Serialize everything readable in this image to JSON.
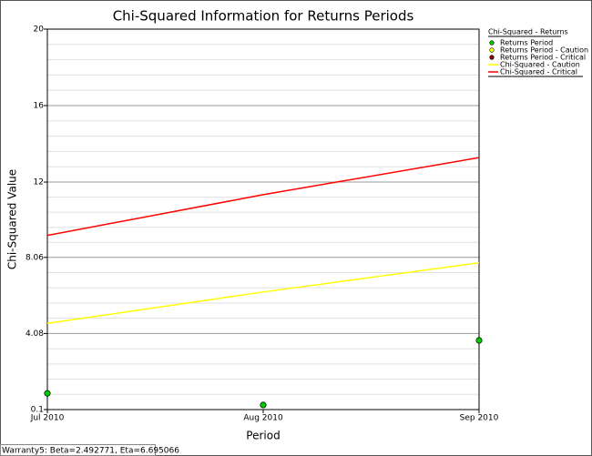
{
  "chart_data": {
    "type": "line",
    "title": "Chi-Squared Information for Returns Periods",
    "x_label": "Period",
    "y_label": "Chi-Squared Value",
    "legend_title": "Chi-Squared - Returns",
    "categories": [
      "Jul 2010",
      "Aug 2010",
      "Sep 2010"
    ],
    "series": [
      {
        "name": "Returns Period",
        "color": "#00cc00",
        "kind": "points",
        "values": [
          0.95,
          0.34,
          3.72
        ]
      },
      {
        "name": "Returns Period - Caution",
        "color": "#ffff00",
        "kind": "points",
        "values": [
          null,
          null,
          null
        ]
      },
      {
        "name": "Returns Period - Critical",
        "color": "#8b0000",
        "kind": "points",
        "values": [
          null,
          null,
          null
        ]
      },
      {
        "name": "Chi-Squared - Caution",
        "color": "#ffff00",
        "kind": "line",
        "values": [
          4.61,
          6.25,
          7.78
        ]
      },
      {
        "name": "Chi-Squared - Critical",
        "color": "#ff0000",
        "kind": "line",
        "values": [
          9.21,
          11.34,
          13.28
        ]
      }
    ],
    "ylim": [
      0.1,
      20
    ],
    "yticks": [
      0.1,
      4.08,
      8.06,
      12,
      16,
      20
    ],
    "grid": true,
    "minor_grid": 5,
    "legend": "right",
    "footer": "Warranty5: Beta=2.492771, Eta=6.695066"
  }
}
